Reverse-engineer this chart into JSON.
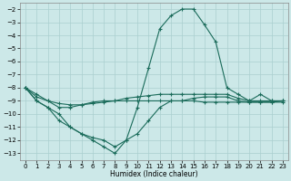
{
  "bg_color": "#cce8e8",
  "grid_color": "#aacfcf",
  "line_color": "#1a6b5a",
  "line_width": 0.8,
  "marker": "+",
  "marker_size": 3,
  "xlabel": "Humidex (Indice chaleur)",
  "xlabel_fontsize": 5.5,
  "xlim": [
    -0.5,
    23.5
  ],
  "ylim": [
    -13.5,
    -1.5
  ],
  "xticks": [
    0,
    1,
    2,
    3,
    4,
    5,
    6,
    7,
    8,
    9,
    10,
    11,
    12,
    13,
    14,
    15,
    16,
    17,
    18,
    19,
    20,
    21,
    22,
    23
  ],
  "yticks": [
    -2,
    -3,
    -4,
    -5,
    -6,
    -7,
    -8,
    -9,
    -10,
    -11,
    -12,
    -13
  ],
  "tick_labelsize": 5,
  "line1_x": [
    0,
    1,
    2,
    3,
    4,
    5,
    6,
    7,
    8,
    9,
    10,
    11,
    12,
    13,
    14,
    15,
    16,
    17,
    18,
    19,
    20,
    21,
    22,
    23
  ],
  "line1_y": [
    -8.0,
    -8.7,
    -9.0,
    -9.2,
    -9.3,
    -9.3,
    -9.2,
    -9.1,
    -9.0,
    -9.0,
    -9.0,
    -9.0,
    -9.0,
    -9.0,
    -9.0,
    -8.8,
    -8.7,
    -8.7,
    -8.7,
    -9.0,
    -9.1,
    -9.1,
    -9.1,
    -9.0
  ],
  "line2_x": [
    0,
    1,
    2,
    3,
    4,
    5,
    6,
    7,
    8,
    9,
    10,
    11,
    12,
    13,
    14,
    15,
    16,
    17,
    18,
    19,
    20,
    21,
    22,
    23
  ],
  "line2_y": [
    -8.0,
    -8.5,
    -9.0,
    -9.5,
    -9.5,
    -9.3,
    -9.1,
    -9.0,
    -9.0,
    -8.8,
    -8.7,
    -8.6,
    -8.5,
    -8.5,
    -8.5,
    -8.5,
    -8.5,
    -8.5,
    -8.5,
    -8.8,
    -9.0,
    -9.0,
    -9.0,
    -9.0
  ],
  "line3_x": [
    0,
    1,
    2,
    3,
    4,
    5,
    6,
    7,
    8,
    9,
    10,
    11,
    12,
    13,
    14,
    15,
    16,
    17,
    18,
    19,
    20,
    21,
    22,
    23
  ],
  "line3_y": [
    -8.0,
    -9.0,
    -9.5,
    -10.5,
    -11.0,
    -11.5,
    -11.8,
    -12.0,
    -12.5,
    -12.0,
    -11.5,
    -10.5,
    -9.5,
    -9.0,
    -9.0,
    -9.0,
    -9.1,
    -9.1,
    -9.1,
    -9.1,
    -9.1,
    -9.1,
    -9.1,
    -9.1
  ],
  "line4_x": [
    0,
    1,
    2,
    3,
    4,
    5,
    6,
    7,
    8,
    9,
    10,
    11,
    12,
    13,
    14,
    15,
    16,
    17,
    18,
    19,
    20,
    21,
    22,
    23
  ],
  "line4_y": [
    -8.0,
    -9.0,
    -9.5,
    -10.0,
    -11.0,
    -11.5,
    -12.0,
    -12.5,
    -13.0,
    -12.0,
    -9.5,
    -6.5,
    -3.5,
    -2.5,
    -2.0,
    -2.0,
    -3.2,
    -4.5,
    -8.0,
    -8.5,
    -9.0,
    -8.5,
    -9.0,
    -9.0
  ]
}
